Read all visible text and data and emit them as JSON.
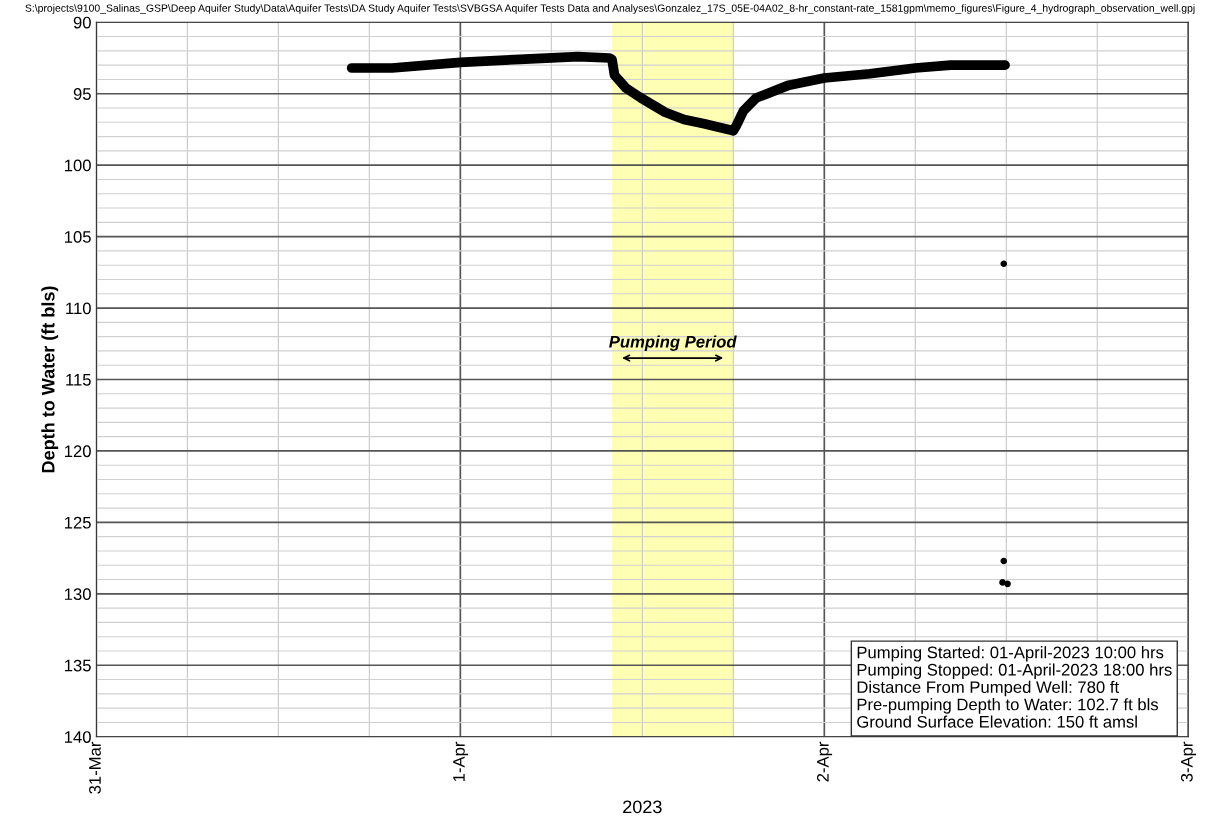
{
  "chart_data": {
    "type": "line",
    "xlabel": "2023",
    "ylabel": "Depth to Water (ft bls)",
    "x": [
      "2023-03-31T16:50",
      "2023-03-31T19:30",
      "2023-04-01T00:00",
      "2023-04-01T03:55",
      "2023-04-01T07:45",
      "2023-04-01T09:50",
      "2023-04-01T10:00",
      "2023-04-01T10:10",
      "2023-04-01T10:55",
      "2023-04-01T11:55",
      "2023-04-01T13:30",
      "2023-04-01T14:45",
      "2023-04-01T16:05",
      "2023-04-01T17:40",
      "2023-04-01T18:00",
      "2023-04-01T18:10",
      "2023-04-01T18:40",
      "2023-04-01T19:30",
      "2023-04-01T21:40",
      "2023-04-02T00:00",
      "2023-04-02T03:00",
      "2023-04-02T06:00",
      "2023-04-02T08:20",
      "2023-04-02T11:55"
    ],
    "series": [
      {
        "color": "#000000",
        "marker": "none",
        "line_style": "solid",
        "values": [
          93.2,
          93.2,
          92.8,
          92.6,
          92.4,
          92.5,
          92.6,
          93.7,
          94.6,
          95.3,
          96.3,
          96.8,
          97.1,
          97.5,
          97.6,
          97.3,
          96.2,
          95.3,
          94.4,
          93.9,
          93.6,
          93.2,
          93.0,
          93.0
        ]
      },
      {
        "type": "scatter",
        "color": "#000000",
        "marker": "circle",
        "x": [
          "2023-04-02T11:50",
          "2023-04-02T11:50",
          "2023-04-02T11:45",
          "2023-04-02T12:05"
        ],
        "values": [
          106.9,
          127.7,
          129.2,
          129.3
        ]
      }
    ],
    "xlim": [
      "2023-03-31",
      "2023-04-03"
    ],
    "xticks": [
      {
        "value": "2023-03-31",
        "label": "31-Mar"
      },
      {
        "value": "2023-04-01",
        "label": "1-Apr"
      },
      {
        "value": "2023-04-02",
        "label": "2-Apr"
      },
      {
        "value": "2023-04-03",
        "label": "3-Apr"
      }
    ],
    "ylim": [
      140,
      90
    ],
    "yticks": [
      90,
      95,
      100,
      105,
      110,
      115,
      120,
      125,
      130,
      135,
      140
    ],
    "grid": true,
    "bands": [
      {
        "axis": "x",
        "from": "2023-04-01T10:00",
        "to": "2023-04-01T18:00",
        "color": "#ffffb3"
      }
    ],
    "annotations": [
      "S:\\projects\\9100_Salinas_GSP\\Deep Aquifer Study\\Data\\Aquifer Tests\\DA Study Aquifer Tests\\SVBGSA Aquifer Tests Data and Analyses\\Gonzalez_17S_05E-04A02_8-hr_constant-rate_1581gpm\\memo_figures\\Figure_4_hydrograph_observation_well.gpj",
      "Pumping Period",
      "Pumping Started: 01-April-2023 10:00 hrs",
      "Pumping Stopped: 01-April-2023 18:00 hrs",
      "Distance From Pumped Well: 780 ft",
      "Pre-pumping Depth to Water: 102.7 ft bls",
      "Ground Surface Elevation: 150 ft amsl"
    ]
  }
}
